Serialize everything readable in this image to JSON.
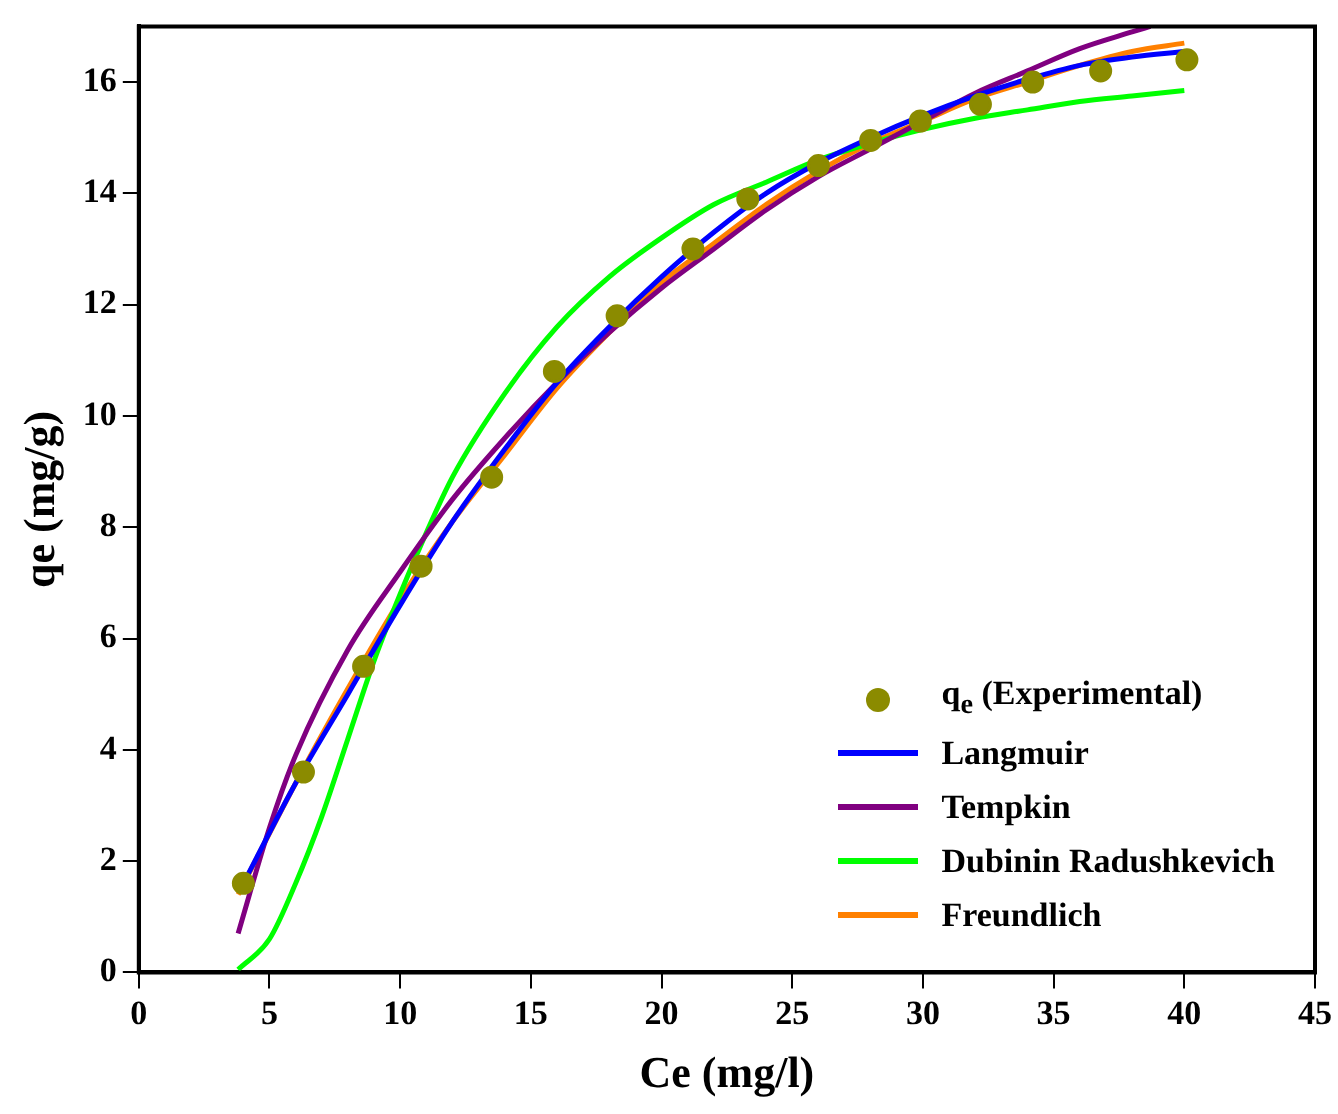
{
  "chart_data": {
    "type": "line",
    "xlabel": "Ce (mg/l)",
    "ylabel": "qe (mg/g)",
    "xlim": [
      0,
      45
    ],
    "xticks": [
      0,
      5,
      10,
      15,
      20,
      25,
      30,
      35,
      40,
      45
    ],
    "ylim": [
      0,
      17
    ],
    "yticks": [
      0,
      2,
      4,
      6,
      8,
      10,
      12,
      14,
      16
    ],
    "grid": false,
    "legend": "bottom right",
    "series": [
      {
        "name": "q$_{e}$ (Experimental)",
        "type": "scatter",
        "marker": "circle",
        "color": "#8b8b00",
        "x": [
          4,
          6.3,
          8.6,
          10.8,
          13.5,
          15.9,
          18.3,
          21.2,
          23.3,
          26.0,
          28.0,
          29.9,
          32.2,
          34.2,
          36.8,
          40.1
        ],
        "values": [
          1.6,
          3.6,
          5.5,
          7.3,
          8.9,
          10.8,
          11.8,
          13.0,
          13.9,
          14.5,
          14.95,
          15.3,
          15.6,
          16.0,
          16.2,
          16.4
        ]
      },
      {
        "name": "Langmuir",
        "type": "line",
        "marker": "none",
        "color": "#0000ff",
        "x": [
          4,
          6,
          8,
          10,
          12,
          14,
          16,
          18,
          20,
          22,
          24,
          26,
          28,
          30,
          32,
          34,
          36,
          38,
          40
        ],
        "values": [
          1.6,
          3.4,
          5.0,
          6.6,
          8.1,
          9.4,
          10.6,
          11.6,
          12.5,
          13.3,
          14.0,
          14.55,
          15.0,
          15.4,
          15.75,
          16.05,
          16.3,
          16.45,
          16.55
        ]
      },
      {
        "name": "Tempkin",
        "type": "line",
        "marker": "none",
        "color": "#800080",
        "x": [
          3.8,
          5,
          6,
          8,
          10,
          12,
          14,
          16,
          18,
          20,
          22,
          24,
          26,
          28,
          30,
          32,
          34,
          36,
          38,
          38.7
        ],
        "values": [
          0.7,
          2.6,
          3.9,
          5.8,
          7.2,
          8.5,
          9.6,
          10.6,
          11.5,
          12.3,
          13.0,
          13.7,
          14.3,
          14.8,
          15.3,
          15.8,
          16.2,
          16.6,
          16.9,
          17.0
        ]
      },
      {
        "name": "Dubinin Radushkevich",
        "type": "line",
        "marker": "none",
        "color": "#00ff00",
        "x": [
          3.8,
          5,
          6,
          7,
          8,
          9,
          10,
          11,
          12,
          14,
          16,
          18,
          20,
          22,
          24,
          26,
          28,
          30,
          32,
          34,
          36,
          38,
          40
        ],
        "values": [
          0.05,
          0.6,
          1.6,
          2.8,
          4.2,
          5.6,
          6.8,
          7.9,
          8.9,
          10.4,
          11.6,
          12.5,
          13.2,
          13.8,
          14.2,
          14.6,
          14.9,
          15.15,
          15.35,
          15.5,
          15.65,
          15.75,
          15.85
        ]
      },
      {
        "name": "Freundlich",
        "type": "line",
        "marker": "none",
        "color": "#ff8000",
        "x": [
          3.8,
          6,
          8,
          10,
          12,
          14,
          16,
          18,
          20,
          22,
          24,
          26,
          28,
          30,
          32,
          34,
          36,
          38,
          40
        ],
        "values": [
          1.4,
          3.4,
          5.1,
          6.7,
          8.1,
          9.3,
          10.5,
          11.5,
          12.4,
          13.1,
          13.8,
          14.4,
          14.9,
          15.3,
          15.7,
          16.0,
          16.3,
          16.55,
          16.7
        ]
      }
    ]
  }
}
